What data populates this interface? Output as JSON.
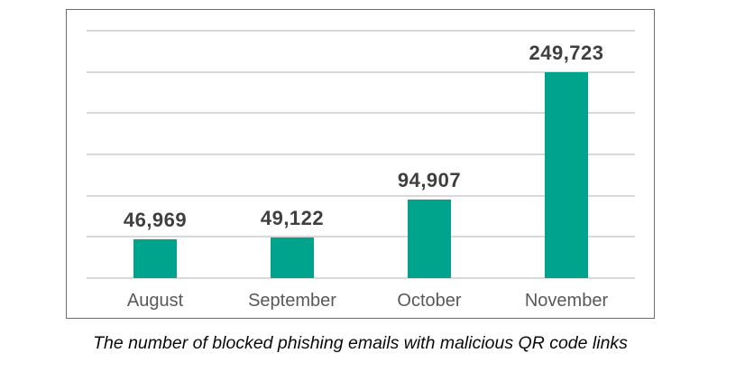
{
  "chart_data": {
    "type": "bar",
    "categories": [
      "August",
      "September",
      "October",
      "November"
    ],
    "values": [
      46969,
      49122,
      94907,
      249723
    ],
    "value_labels": [
      "46,969",
      "49,122",
      "94,907",
      "249,723"
    ],
    "title": "",
    "xlabel": "",
    "ylabel": "",
    "ylim": [
      0,
      300000
    ],
    "gridline_interval": 50000,
    "grid": true,
    "legend_position": "none",
    "caption": "The number of blocked phishing emails with malicious QR code links",
    "colors": {
      "bar": "#00A38B",
      "grid": "#D9D9D9",
      "frame_border": "#6B6B6B",
      "value_label": "#3F3F3F",
      "category_label": "#595959",
      "caption": "#0A0A0A",
      "background": "#FFFFFF"
    }
  }
}
